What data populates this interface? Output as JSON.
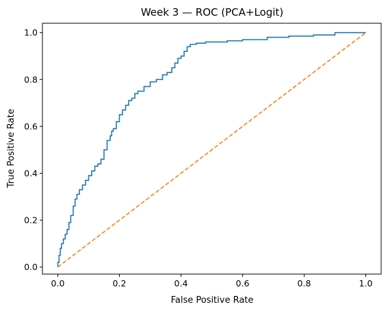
{
  "chart_data": {
    "type": "line",
    "title": "Week 3 — ROC (PCA+Logit)",
    "xlabel": "False Positive Rate",
    "ylabel": "True Positive Rate",
    "xlim": [
      -0.05,
      1.05
    ],
    "ylim": [
      -0.03,
      1.04
    ],
    "grid": false,
    "legend": "none",
    "x_ticks": [
      0.0,
      0.2,
      0.4,
      0.6,
      0.8,
      1.0
    ],
    "y_ticks": [
      0.0,
      0.2,
      0.4,
      0.6,
      0.8,
      1.0
    ],
    "x_tick_labels": [
      "0.0",
      "0.2",
      "0.4",
      "0.6",
      "0.8",
      "1.0"
    ],
    "y_tick_labels": [
      "0.0",
      "0.2",
      "0.4",
      "0.6",
      "0.8",
      "1.0"
    ],
    "series": [
      {
        "color": "#1f77b4",
        "style": "solid",
        "x": [
          0.0,
          0.0,
          0.004,
          0.004,
          0.008,
          0.008,
          0.012,
          0.012,
          0.018,
          0.018,
          0.024,
          0.024,
          0.03,
          0.03,
          0.036,
          0.036,
          0.042,
          0.042,
          0.05,
          0.05,
          0.056,
          0.056,
          0.062,
          0.062,
          0.07,
          0.07,
          0.08,
          0.08,
          0.09,
          0.09,
          0.1,
          0.1,
          0.11,
          0.11,
          0.12,
          0.12,
          0.13,
          0.13,
          0.14,
          0.14,
          0.15,
          0.15,
          0.16,
          0.16,
          0.17,
          0.17,
          0.175,
          0.175,
          0.18,
          0.18,
          0.19,
          0.19,
          0.2,
          0.2,
          0.21,
          0.21,
          0.22,
          0.22,
          0.23,
          0.23,
          0.24,
          0.24,
          0.25,
          0.25,
          0.26,
          0.26,
          0.28,
          0.28,
          0.3,
          0.3,
          0.32,
          0.32,
          0.34,
          0.34,
          0.355,
          0.355,
          0.37,
          0.37,
          0.38,
          0.38,
          0.39,
          0.39,
          0.4,
          0.4,
          0.41,
          0.41,
          0.42,
          0.42,
          0.43,
          0.43,
          0.45,
          0.45,
          0.48,
          0.48,
          0.55,
          0.55,
          0.6,
          0.6,
          0.68,
          0.68,
          0.75,
          0.75,
          0.83,
          0.83,
          0.9,
          0.9,
          1.0
        ],
        "y": [
          0.0,
          0.02,
          0.02,
          0.05,
          0.05,
          0.08,
          0.08,
          0.1,
          0.1,
          0.12,
          0.12,
          0.14,
          0.14,
          0.16,
          0.16,
          0.19,
          0.19,
          0.22,
          0.22,
          0.26,
          0.26,
          0.29,
          0.29,
          0.31,
          0.31,
          0.33,
          0.33,
          0.35,
          0.35,
          0.37,
          0.37,
          0.39,
          0.39,
          0.41,
          0.41,
          0.43,
          0.43,
          0.44,
          0.44,
          0.46,
          0.46,
          0.5,
          0.5,
          0.54,
          0.54,
          0.56,
          0.56,
          0.58,
          0.58,
          0.59,
          0.59,
          0.62,
          0.62,
          0.65,
          0.65,
          0.67,
          0.67,
          0.69,
          0.69,
          0.71,
          0.71,
          0.72,
          0.72,
          0.74,
          0.74,
          0.75,
          0.75,
          0.77,
          0.77,
          0.79,
          0.79,
          0.8,
          0.8,
          0.82,
          0.82,
          0.83,
          0.83,
          0.85,
          0.85,
          0.87,
          0.87,
          0.89,
          0.89,
          0.9,
          0.9,
          0.92,
          0.92,
          0.94,
          0.94,
          0.95,
          0.95,
          0.955,
          0.955,
          0.96,
          0.96,
          0.965,
          0.965,
          0.97,
          0.97,
          0.98,
          0.98,
          0.985,
          0.985,
          0.99,
          0.99,
          1.0,
          1.0
        ]
      },
      {
        "color": "#ff7f0e",
        "style": "dashed",
        "x": [
          0.0,
          1.0
        ],
        "y": [
          0.0,
          1.0
        ]
      }
    ]
  }
}
